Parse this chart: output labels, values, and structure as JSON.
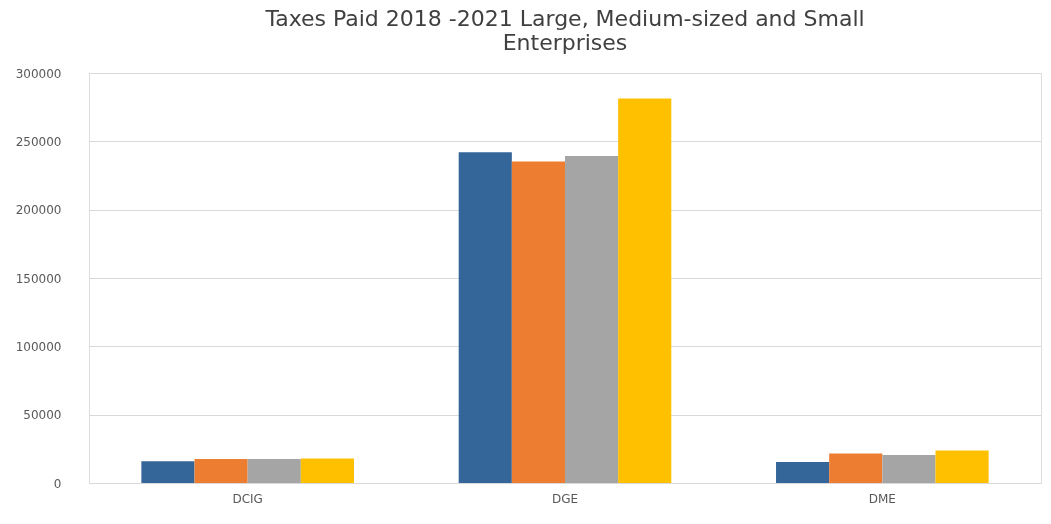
{
  "chart_data": {
    "type": "bar",
    "title": [
      "Taxes Paid 2018 -2021 Large, Medium-sized and Small",
      "Enterprises"
    ],
    "categories": [
      "DCIG",
      "DGE",
      "DME"
    ],
    "series": [
      {
        "color": "#35669a",
        "values": [
          15900,
          242000,
          15300
        ]
      },
      {
        "color": "#ed7d31",
        "values": [
          17600,
          235200,
          21600
        ]
      },
      {
        "color": "#a5a5a5",
        "values": [
          17600,
          239300,
          20400
        ]
      },
      {
        "color": "#ffc000",
        "values": [
          17900,
          281300,
          23800
        ]
      }
    ],
    "ylim": [
      0,
      300000
    ],
    "yticks": [
      0,
      50000,
      100000,
      150000,
      200000,
      250000,
      300000
    ],
    "grid": "y",
    "legend": false
  }
}
